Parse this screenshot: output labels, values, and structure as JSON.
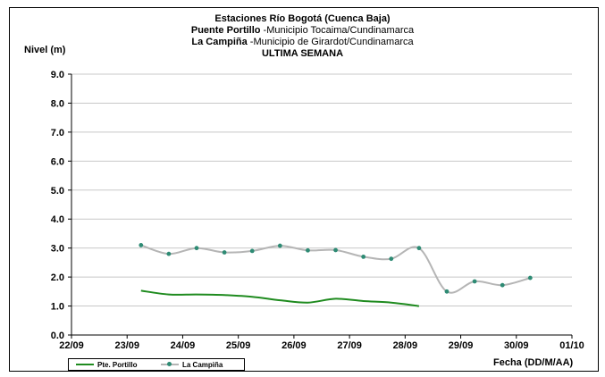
{
  "title": {
    "line1": "Estaciones Río Bogotá (Cuenca Baja)",
    "line2_bold": "Puente Portillo",
    "line2_rest": " -Municipio Tocaima/Cundinamarca",
    "line3_bold": "La Campiña",
    "line3_rest": " -Municipio de Girardot/Cundinamarca",
    "line4": "ULTIMA SEMANA"
  },
  "chart_data": {
    "type": "line",
    "ylabel": "Nivel (m)",
    "xlabel": "Fecha (DD/M/AA)",
    "ylim": [
      0,
      9
    ],
    "yticks": [
      "0.0",
      "1.0",
      "2.0",
      "3.0",
      "4.0",
      "5.0",
      "6.0",
      "7.0",
      "8.0",
      "9.0"
    ],
    "xlim": [
      "2022-09-22",
      "2022-10-01"
    ],
    "xticks": [
      "22/09",
      "23/09",
      "24/09",
      "25/09",
      "26/09",
      "27/09",
      "28/09",
      "29/09",
      "30/09",
      "01/10"
    ],
    "grid": true,
    "legend_position": "bottom-left",
    "series": [
      {
        "name": "Pte. Portillo",
        "color": "#1f8b1f",
        "markers": false,
        "points": [
          [
            "2022-09-23 06:00",
            1.53
          ],
          [
            "2022-09-23 18:00",
            1.4
          ],
          [
            "2022-09-24 06:00",
            1.4
          ],
          [
            "2022-09-24 18:00",
            1.38
          ],
          [
            "2022-09-25 06:00",
            1.32
          ],
          [
            "2022-09-25 18:00",
            1.2
          ],
          [
            "2022-09-26 06:00",
            1.12
          ],
          [
            "2022-09-26 18:00",
            1.25
          ],
          [
            "2022-09-27 06:00",
            1.17
          ],
          [
            "2022-09-27 18:00",
            1.12
          ],
          [
            "2022-09-28 06:00",
            1.0
          ]
        ]
      },
      {
        "name": "La Campiña",
        "color": "#b5b5b5",
        "marker_color": "#2e8b74",
        "markers": true,
        "points": [
          [
            "2022-09-23 06:00",
            3.1
          ],
          [
            "2022-09-23 18:00",
            2.8
          ],
          [
            "2022-09-24 06:00",
            3.0
          ],
          [
            "2022-09-24 18:00",
            2.85
          ],
          [
            "2022-09-25 06:00",
            2.9
          ],
          [
            "2022-09-25 18:00",
            3.08
          ],
          [
            "2022-09-26 06:00",
            2.92
          ],
          [
            "2022-09-26 18:00",
            2.93
          ],
          [
            "2022-09-27 06:00",
            2.7
          ],
          [
            "2022-09-27 18:00",
            2.63
          ],
          [
            "2022-09-28 06:00",
            3.0
          ],
          [
            "2022-09-28 18:00",
            1.5
          ],
          [
            "2022-09-29 06:00",
            1.85
          ],
          [
            "2022-09-29 18:00",
            1.72
          ],
          [
            "2022-09-30 06:00",
            1.97
          ]
        ]
      }
    ]
  }
}
